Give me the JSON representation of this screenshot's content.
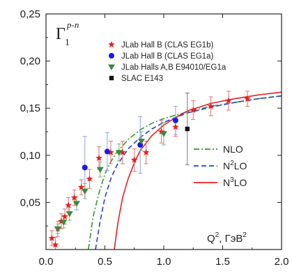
{
  "chart_data": {
    "type": "scatter",
    "title": "",
    "annotation": {
      "symbol": "Γ",
      "subscript": "1",
      "superscript": "p-n"
    },
    "xlabel": {
      "base": "Q",
      "sup": "2",
      "unit_prefix": ", ГэВ",
      "unit_sup": "2"
    },
    "ylabel": "",
    "xlim": [
      0.0,
      2.0
    ],
    "ylim": [
      0.0,
      0.25
    ],
    "xticks": [
      0.0,
      0.5,
      1.0,
      1.5,
      2.0
    ],
    "xtick_labels": [
      "0.0",
      "0.5",
      "1.0",
      "1.5",
      "2.0"
    ],
    "yticks": [
      0.0,
      0.05,
      0.1,
      0.15,
      0.2,
      0.25
    ],
    "ytick_labels": [
      "",
      "0,05",
      "0,10",
      "0,15",
      "0,20",
      "0,25"
    ],
    "grid": false,
    "legend_position": "top-left",
    "series": [
      {
        "name": "JLab Hall B (CLAS EG1b)",
        "marker": "star",
        "color": "#e8201e",
        "points": [
          {
            "x": 0.05,
            "y": 0.012,
            "err": 0.008
          },
          {
            "x": 0.08,
            "y": 0.005,
            "err": 0.008
          },
          {
            "x": 0.1,
            "y": 0.022,
            "err": 0.008
          },
          {
            "x": 0.13,
            "y": 0.03,
            "err": 0.008
          },
          {
            "x": 0.16,
            "y": 0.035,
            "err": 0.008
          },
          {
            "x": 0.19,
            "y": 0.047,
            "err": 0.008
          },
          {
            "x": 0.24,
            "y": 0.055,
            "err": 0.008
          },
          {
            "x": 0.3,
            "y": 0.066,
            "err": 0.008
          },
          {
            "x": 0.37,
            "y": 0.075,
            "err": 0.01
          },
          {
            "x": 0.45,
            "y": 0.097,
            "err": 0.012
          },
          {
            "x": 0.55,
            "y": 0.103,
            "err": 0.012
          },
          {
            "x": 0.65,
            "y": 0.103,
            "err": 0.012
          },
          {
            "x": 0.75,
            "y": 0.095,
            "err": 0.012
          },
          {
            "x": 0.85,
            "y": 0.103,
            "err": 0.012
          },
          {
            "x": 0.98,
            "y": 0.125,
            "err": 0.012
          },
          {
            "x": 1.1,
            "y": 0.13,
            "err": 0.01
          },
          {
            "x": 1.25,
            "y": 0.148,
            "err": 0.01
          },
          {
            "x": 1.4,
            "y": 0.152,
            "err": 0.01
          },
          {
            "x": 1.55,
            "y": 0.158,
            "err": 0.01
          },
          {
            "x": 1.71,
            "y": 0.16,
            "err": 0.008
          }
        ]
      },
      {
        "name": "JLab Hall B (CLAS EG1a)",
        "marker": "circle",
        "color": "#1a1ae6",
        "points": [
          {
            "x": 0.33,
            "y": 0.087,
            "err": 0.033
          },
          {
            "x": 0.52,
            "y": 0.104,
            "err": 0.02
          },
          {
            "x": 0.8,
            "y": 0.111,
            "err": 0.03
          },
          {
            "x": 1.1,
            "y": 0.137,
            "err": 0.015
          }
        ]
      },
      {
        "name": "JLab Halls A,B E94010/EG1a",
        "marker": "triangle-down",
        "color": "#3c8a3c",
        "points": [
          {
            "x": 0.1,
            "y": 0.022,
            "err": 0.005
          },
          {
            "x": 0.15,
            "y": 0.029,
            "err": 0.006
          },
          {
            "x": 0.2,
            "y": 0.038,
            "err": 0.007
          },
          {
            "x": 0.26,
            "y": 0.049,
            "err": 0.007
          },
          {
            "x": 0.33,
            "y": 0.062,
            "err": 0.008
          },
          {
            "x": 0.46,
            "y": 0.085,
            "err": 0.008
          },
          {
            "x": 0.62,
            "y": 0.103,
            "err": 0.009
          },
          {
            "x": 0.81,
            "y": 0.115,
            "err": 0.01
          },
          {
            "x": 1.0,
            "y": 0.123,
            "err": 0.012
          }
        ]
      },
      {
        "name": "SLAC E143",
        "marker": "square",
        "color": "#111111",
        "points": [
          {
            "x": 1.2,
            "y": 0.128,
            "err": 0.038
          }
        ]
      }
    ],
    "curves": [
      {
        "name": "NLO",
        "style": "dash-dot",
        "color": "#2f9a2f",
        "x": [
          0.36,
          0.4,
          0.45,
          0.5,
          0.55,
          0.6,
          0.7,
          0.8,
          0.9,
          1.0,
          1.2,
          1.4,
          1.6,
          1.8,
          2.0
        ],
        "y": [
          0.0,
          0.035,
          0.06,
          0.08,
          0.093,
          0.103,
          0.117,
          0.127,
          0.134,
          0.139,
          0.146,
          0.152,
          0.156,
          0.16,
          0.163
        ]
      },
      {
        "name": "N²LO",
        "label_base": "N",
        "label_sup": "2",
        "label_suffix": "LO",
        "style": "dashed",
        "color": "#1f3fe0",
        "x": [
          0.42,
          0.46,
          0.5,
          0.55,
          0.6,
          0.7,
          0.8,
          0.9,
          1.0,
          1.2,
          1.4,
          1.6,
          1.8,
          2.0
        ],
        "y": [
          0.0,
          0.03,
          0.055,
          0.075,
          0.089,
          0.107,
          0.119,
          0.128,
          0.135,
          0.145,
          0.151,
          0.156,
          0.16,
          0.163
        ]
      },
      {
        "name": "N³LO",
        "label_base": "N",
        "label_sup": "3",
        "label_suffix": "LO",
        "style": "solid",
        "color": "#e81e1e",
        "x": [
          0.58,
          0.61,
          0.65,
          0.7,
          0.75,
          0.8,
          0.9,
          1.0,
          1.1,
          1.2,
          1.4,
          1.6,
          1.8,
          2.0
        ],
        "y": [
          0.0,
          0.028,
          0.055,
          0.076,
          0.092,
          0.105,
          0.121,
          0.132,
          0.14,
          0.147,
          0.155,
          0.16,
          0.164,
          0.167
        ]
      }
    ]
  }
}
